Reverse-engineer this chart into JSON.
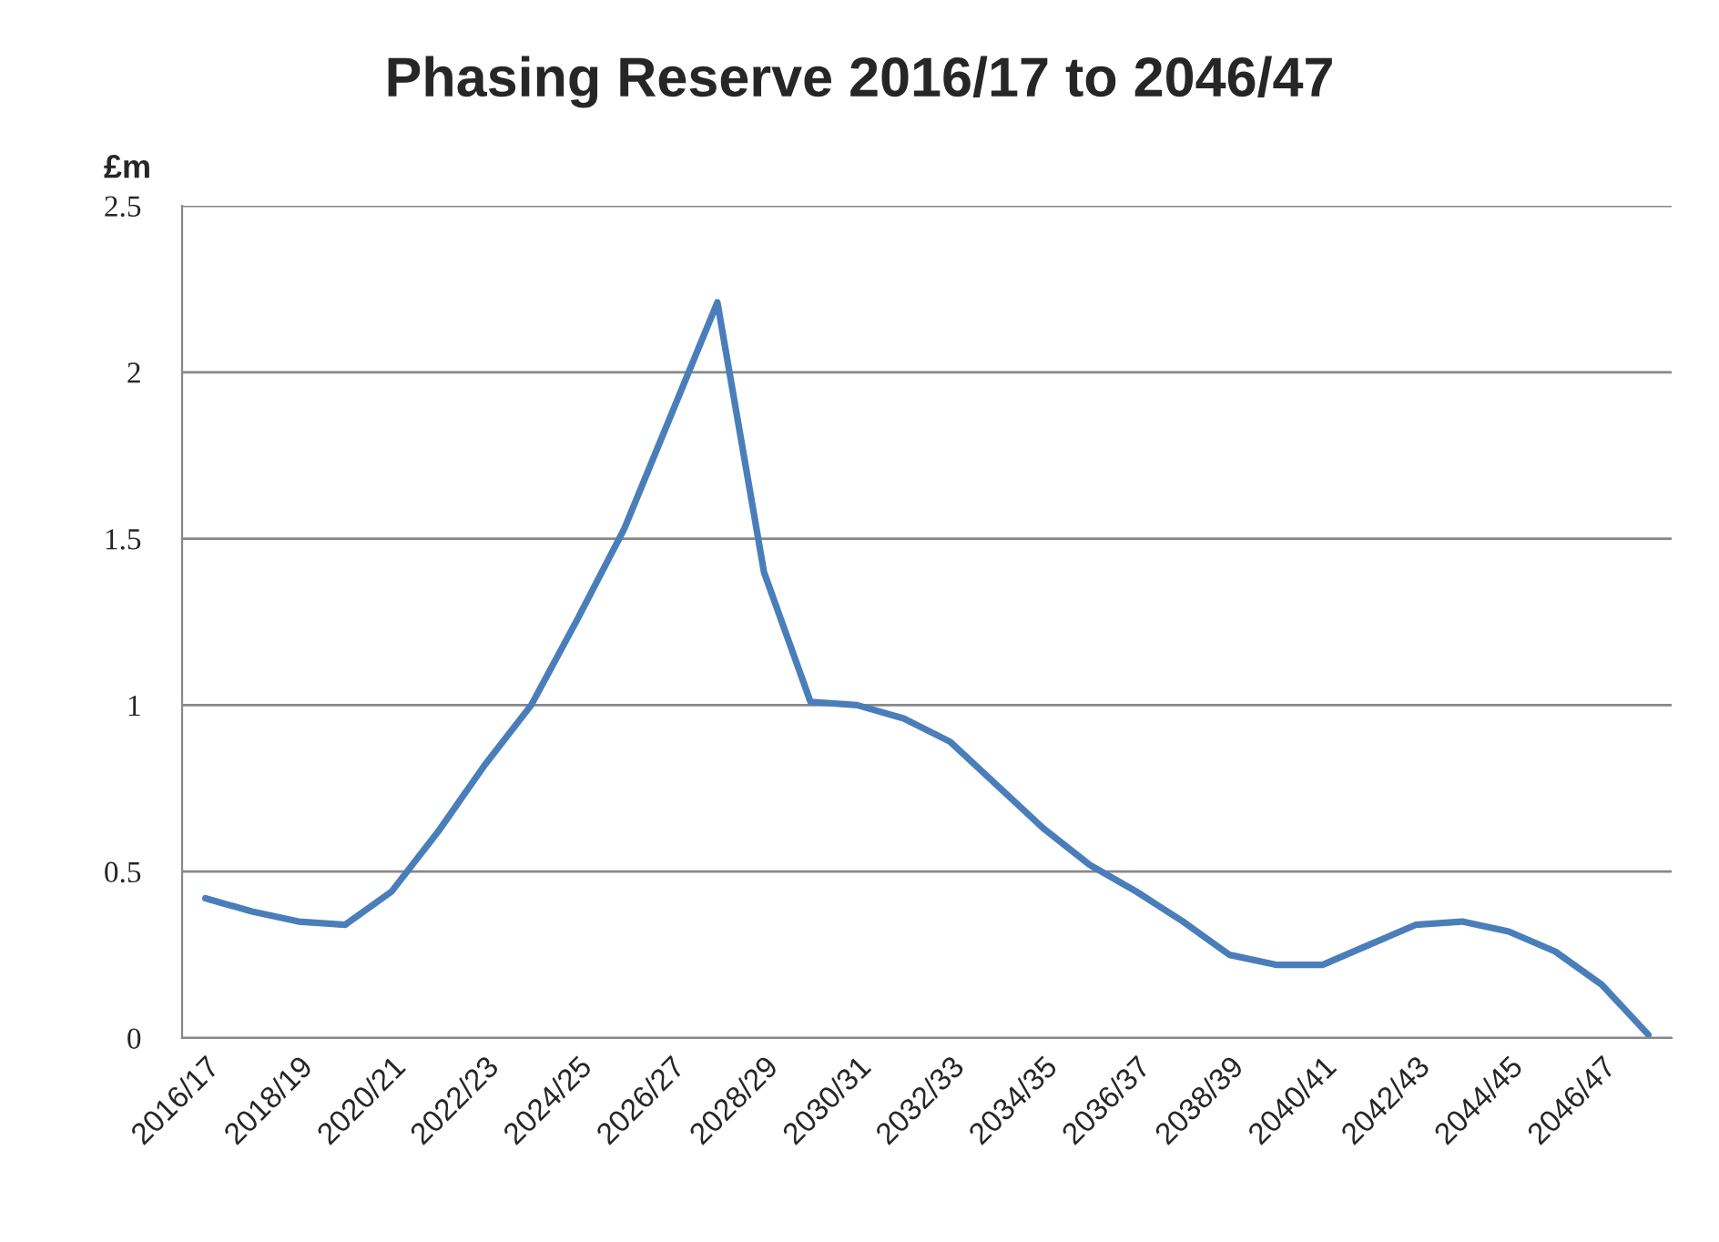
{
  "chart_data": {
    "type": "line",
    "title": "Phasing Reserve 2016/17 to 2046/47",
    "ylabel": "£m",
    "categories": [
      "2016/17",
      null,
      "2018/19",
      null,
      "2020/21",
      null,
      "2022/23",
      null,
      "2024/25",
      null,
      "2026/27",
      null,
      "2028/29",
      null,
      "2030/31",
      null,
      "2032/33",
      null,
      "2034/35",
      null,
      "2036/37",
      null,
      "2038/39",
      null,
      "2040/41",
      null,
      "2042/43",
      null,
      "2044/45",
      null,
      "2046/47",
      null
    ],
    "series": [
      {
        "color": "#4a7ebb",
        "values": [
          0.42,
          0.38,
          0.35,
          0.34,
          0.44,
          0.62,
          0.82,
          1.0,
          1.26,
          1.53,
          1.87,
          2.21,
          1.4,
          1.01,
          1.0,
          0.96,
          0.89,
          0.76,
          0.63,
          0.52,
          0.44,
          0.35,
          0.25,
          0.22,
          0.22,
          0.28,
          0.34,
          0.35,
          0.32,
          0.26,
          0.16,
          0.01
        ]
      }
    ],
    "ylim": [
      0,
      2.5
    ],
    "yticks": [
      0,
      0.5,
      1,
      1.5,
      2,
      2.5
    ],
    "grid": "y",
    "marker": "none",
    "line_style": "solid"
  }
}
